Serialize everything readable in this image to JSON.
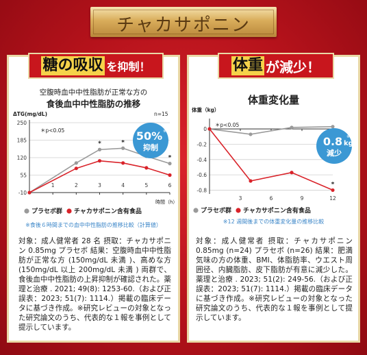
{
  "header": {
    "title": "チャカサポニン"
  },
  "left": {
    "heading": {
      "hl": "糖の吸収",
      "rest": "を抑制！"
    },
    "title_line1": "空腹時血中中性脂肪が正常な方の",
    "title_line2": "食後血中中性脂肪の推移",
    "badge": {
      "value": "50%",
      "suffix": "※",
      "label": "抑制"
    },
    "note": "※食後６時間までの血中中性脂肪の推移比較（計算値）",
    "body": "対象：成人健常者 28 名 摂取：チャカサポニン 0.85mg プラセボ 結果：空腹時血中中性脂肪が正常な方 (150mg/dL 未満 )、高めな方 (150mg/dL 以上 200mg/dL 未満 ) 両群で、食後血中中性脂肪の上昇抑制が確認された。薬理と治療 . 2021; 49(8): 1253-60.（および正誤表：2023; 51(7): 1114.）掲載の臨床データに基づき作成。※研究レビューの対象となった研究論文のうち、代表的な１報を事例として提示しています。"
  },
  "right": {
    "heading": {
      "hl": "体重",
      "rest": "が減少！"
    },
    "title": "体重変化量",
    "badge": {
      "value": "0.8",
      "unit": "kg",
      "suffix": "※",
      "label": "減少"
    },
    "note": "※12 週間後までの体重変化量の推移比較",
    "body": "対象：成人健常者 摂取：チャカサポニン 0.85mg (n=24) プラセボ (n=26) 結果：肥満気味の方の体重、BMI、体脂肪率、ウエスト周囲径、内臓脂肪、皮下脂肪が有意に減少した。薬理と治療 . 2023; 51(2): 249-56.（および正誤表：2023; 51(7): 1114.）掲載の臨床データに基づき作成。※研究レビューの対象となった研究論文のうち、代表的な１報を事例として提示しています。"
  },
  "colors": {
    "placebo": "#9a9a9a",
    "active": "#d9232a",
    "badge": "#3b98d4",
    "banner": "#d9ad5b"
  },
  "chart_data": [
    {
      "type": "line",
      "ylabel": "ΔTG(mg/dL)",
      "n_label": "n=15",
      "sig_note": "＊p<0.05",
      "xlabel": "時間（h）",
      "x": [
        0,
        2,
        3,
        4,
        5,
        6
      ],
      "xticks": [
        1,
        2,
        3,
        4,
        5,
        6
      ],
      "yticks": [
        -10,
        55,
        120,
        185,
        250
      ],
      "ylim": [
        -10,
        250
      ],
      "xlim": [
        0,
        6
      ],
      "series": [
        {
          "name": "プラセボ群",
          "values": [
            -10,
            100,
            150,
            155,
            125,
            98
          ]
        },
        {
          "name": "チャカサポニン含有食品",
          "values": [
            -10,
            80,
            108,
            100,
            82,
            55
          ]
        }
      ],
      "sig_points": [
        3,
        4,
        6
      ],
      "legend": "bottom"
    },
    {
      "type": "line",
      "ylabel": "体重（kg）",
      "sig_note": "＊p<0.05",
      "x": [
        0,
        4,
        8,
        12
      ],
      "xticks": [
        3,
        6,
        9,
        12
      ],
      "yticks": [
        0,
        -0.2,
        -0.4,
        -0.6,
        -0.8
      ],
      "ylim": [
        -0.85,
        0.1
      ],
      "xlim": [
        0,
        12
      ],
      "series": [
        {
          "name": "プラセボ群",
          "values": [
            0,
            -0.07,
            0.02,
            0.03
          ]
        },
        {
          "name": "チャカサポニン含有食品",
          "values": [
            0,
            -0.68,
            -0.57,
            -0.8
          ]
        }
      ],
      "sig_points": [
        12
      ],
      "legend": "bottom"
    }
  ]
}
